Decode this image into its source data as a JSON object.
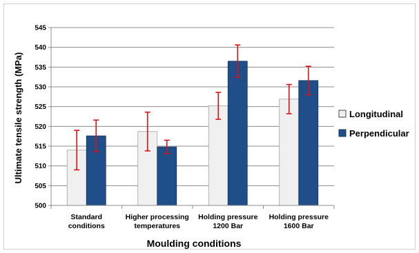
{
  "chart_data": {
    "type": "bar",
    "title": "",
    "xlabel": "Moulding conditions",
    "ylabel": "Ultimate tensile strength (MPa)",
    "ylim": [
      500,
      545
    ],
    "yticks": [
      500,
      505,
      510,
      515,
      520,
      525,
      530,
      535,
      540,
      545
    ],
    "grid": true,
    "legend_position": "right",
    "categories": [
      [
        "Standard",
        "conditions"
      ],
      [
        "Higher processing",
        "temperatures"
      ],
      [
        "Holding pressure",
        "1200 Bar"
      ],
      [
        "Holding pressure",
        "1600 Bar"
      ]
    ],
    "series": [
      {
        "name": "Longitudinal",
        "color": "#f0f0f0",
        "values": [
          514.0,
          518.7,
          525.2,
          526.9
        ],
        "error": [
          5.0,
          4.9,
          3.4,
          3.7
        ]
      },
      {
        "name": "Perpendicular",
        "color": "#1f4e89",
        "values": [
          517.6,
          514.8,
          536.5,
          531.6
        ],
        "error": [
          4.0,
          1.7,
          4.1,
          3.6
        ]
      }
    ],
    "error_bar_color": "#dd1111"
  }
}
